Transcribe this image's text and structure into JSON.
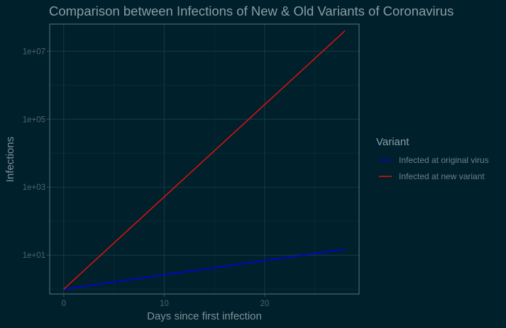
{
  "chart_data": {
    "type": "line",
    "title": "Comparison between Infections of New & Old Variants of Coronavirus",
    "xlabel": "Days since first infection",
    "ylabel": "Infections",
    "x_scale": "linear",
    "y_scale": "log10",
    "xlim": [
      -1.4,
      29.4
    ],
    "ylim": [
      0.72,
      63000000
    ],
    "x_ticks": [
      0,
      10,
      20
    ],
    "x_tick_labels": [
      "0",
      "10",
      "20"
    ],
    "y_ticks": [
      10,
      1000,
      100000,
      10000000
    ],
    "y_tick_labels": [
      "1e+01",
      "1e+03",
      "1e+05",
      "1e+07"
    ],
    "grid": true,
    "legend": {
      "title": "Variant",
      "position": "right"
    },
    "series": [
      {
        "name": "Infected at original virus",
        "color": "#0000ee",
        "points": [
          [
            0,
            1
          ],
          [
            28,
            15
          ]
        ]
      },
      {
        "name": "Infected at new variant",
        "color": "#dd1111",
        "points": [
          [
            0,
            1
          ],
          [
            28,
            40000000
          ]
        ]
      }
    ]
  },
  "colors": {
    "background": "#00202b",
    "grid_major": "#143845",
    "grid_minor": "#0c2c37",
    "panel_border": "#5a7680",
    "tick_mark": "#3a5560"
  }
}
